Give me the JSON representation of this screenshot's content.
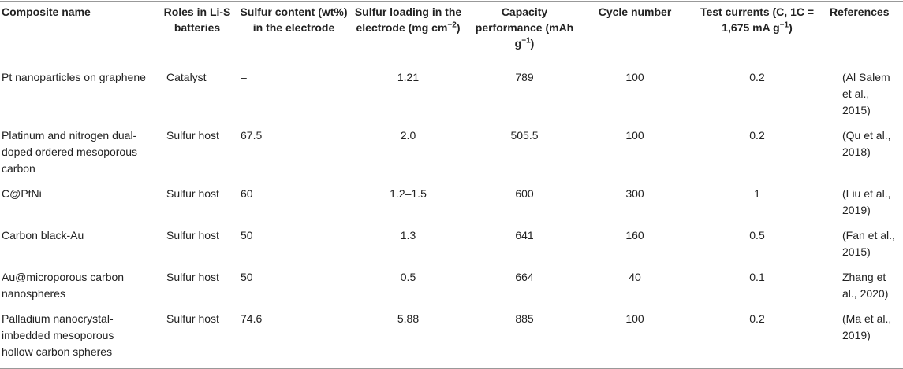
{
  "table": {
    "headers": [
      {
        "text": "Composite name"
      },
      {
        "text": "Roles in Li-S batteries"
      },
      {
        "text": "Sulfur content (wt%) in the electrode"
      },
      {
        "text": "Sulfur loading in the electrode (mg cm",
        "superscript": "−2",
        "text_after": ")"
      },
      {
        "text": "Capacity performance (mAh g",
        "superscript": "−1",
        "text_after": ")"
      },
      {
        "text": "Cycle number"
      },
      {
        "text": "Test currents (C, 1C = 1,675 mA g",
        "superscript": "−1",
        "text_after": ")"
      },
      {
        "text": "References"
      }
    ],
    "rows": [
      [
        "Pt nanoparticles on graphene",
        "Catalyst",
        "–",
        "1.21",
        "789",
        "100",
        "0.2",
        "(Al Salem et al., 2015)"
      ],
      [
        "Platinum and nitrogen dual-doped ordered mesoporous carbon",
        "Sulfur host",
        "67.5",
        "2.0",
        "505.5",
        "100",
        "0.2",
        "(Qu et al., 2018)"
      ],
      [
        "C@PtNi",
        "Sulfur host",
        "60",
        "1.2–1.5",
        "600",
        "300",
        "1",
        "(Liu et al., 2019)"
      ],
      [
        "Carbon black-Au",
        "Sulfur host",
        "50",
        "1.3",
        "641",
        "160",
        "0.5",
        "(Fan et al., 2015)"
      ],
      [
        "Au@microporous carbon nanospheres",
        "Sulfur host",
        "50",
        "0.5",
        "664",
        "40",
        "0.1",
        "Zhang et al., 2020)"
      ],
      [
        "Palladium nanocrystal-imbedded mesoporous hollow carbon spheres",
        "Sulfur host",
        "74.6",
        "5.88",
        "885",
        "100",
        "0.2",
        "(Ma et al., 2019)"
      ]
    ]
  }
}
